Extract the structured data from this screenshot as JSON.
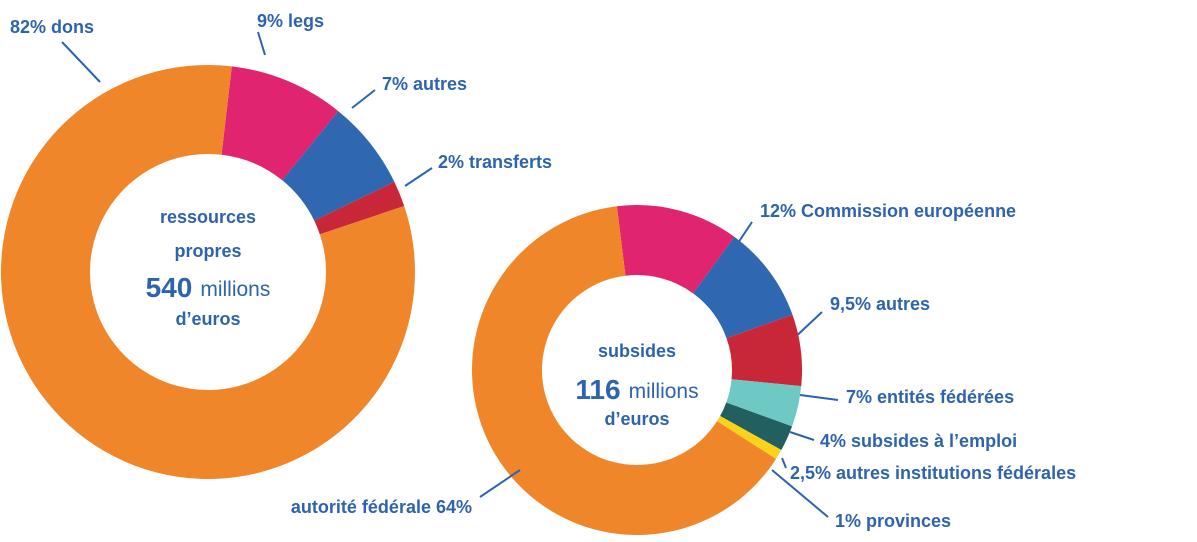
{
  "chart_data": [
    {
      "type": "donut",
      "title_lines": [
        "ressources",
        "propres"
      ],
      "center_value": "540",
      "unit_lines": [
        "millions",
        "d’euros"
      ],
      "values": [
        9,
        7,
        2,
        82
      ],
      "value_labels": [
        "9% legs",
        "7% autres",
        "2% transferts",
        "82% dons"
      ],
      "colors": [
        "#e0246f",
        "#2f67b1",
        "#c8273a",
        "#f0862a"
      ]
    },
    {
      "type": "donut",
      "title_lines": [
        "subsides"
      ],
      "center_value": "116",
      "unit_lines": [
        "millions",
        "d’euros"
      ],
      "values": [
        12,
        9.5,
        7,
        4,
        2.5,
        1,
        64
      ],
      "value_labels": [
        "12% Commission européenne",
        "9,5% autres",
        "7% entités fédérées",
        "4% subsides à l’emploi",
        "2,5% autres institutions fédérales",
        "1% provinces",
        "autorité fédérale 64%"
      ],
      "colors": [
        "#e0246f",
        "#2f67b1",
        "#c8273a",
        "#6ec8c3",
        "#22605f",
        "#f8d31a",
        "#f0862a"
      ]
    }
  ]
}
